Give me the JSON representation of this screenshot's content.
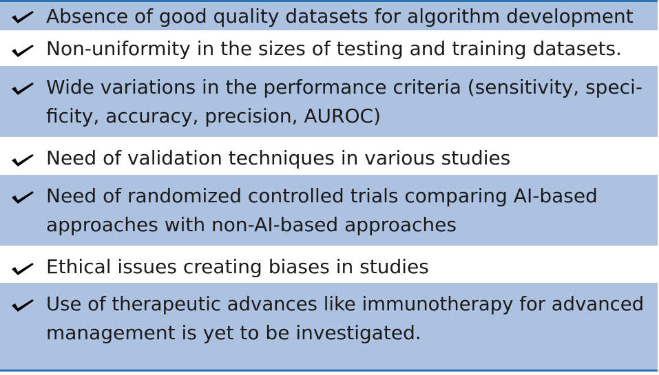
{
  "items": [
    {
      "lines": [
        "Absence of good quality datasets for algorithm development"
      ]
    },
    {
      "lines": [
        "Non-uniformity in the sizes of testing and training datasets."
      ]
    },
    {
      "lines": [
        "Wide variations in the performance criteria (sensitivity, speci-",
        "ficity, accuracy, precision, AUROC)"
      ]
    },
    {
      "lines": [
        "Need of validation techniques in various studies"
      ]
    },
    {
      "lines": [
        "Need of randomized controlled trials comparing AI-based",
        "approaches with non-AI-based approaches"
      ]
    },
    {
      "lines": [
        "Ethical issues creating biases in studies"
      ]
    },
    {
      "lines": [
        "Use of therapeutic advances like immunotherapy for advanced",
        "management is yet to be investigated."
      ]
    }
  ],
  "colors": {
    "shaded_row": "#adc2e0",
    "plain_row": "#ffffff",
    "rule": "#2e75b6",
    "text": "#1a1a1a",
    "check": "#000000"
  },
  "icons": {
    "bullet": "check-icon"
  }
}
